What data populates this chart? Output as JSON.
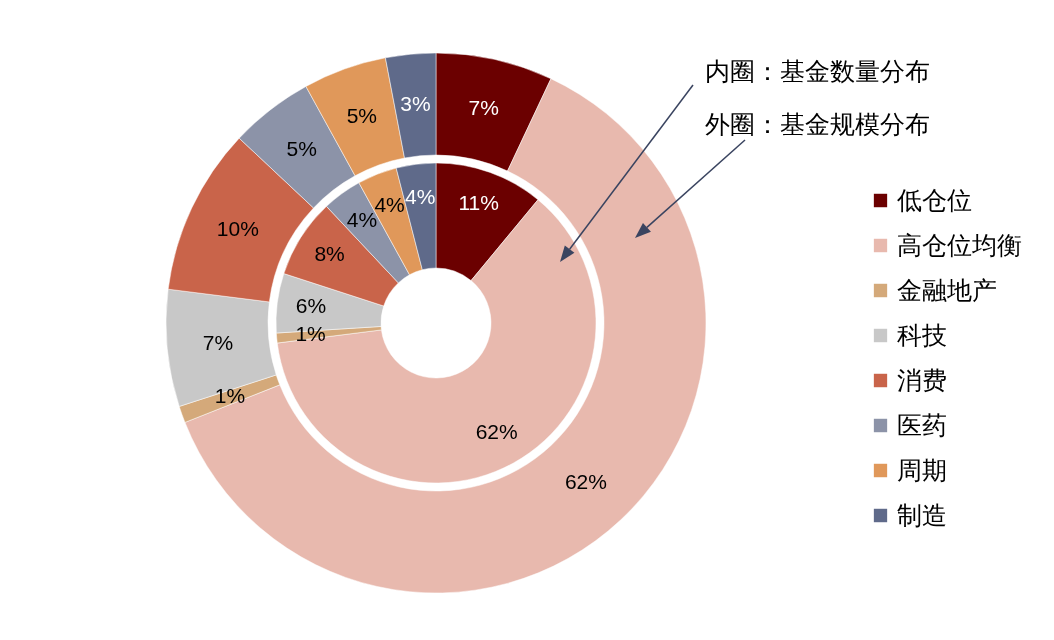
{
  "chart_data": {
    "type": "donut",
    "categories": [
      "低仓位",
      "高仓位均衡",
      "金融地产",
      "科技",
      "消费",
      "医药",
      "周期",
      "制造"
    ],
    "colors": [
      "#6b0000",
      "#e8b9ae",
      "#d4a97a",
      "#c8c8c8",
      "#c9644a",
      "#8c93a8",
      "#e0985a",
      "#5f6a8a"
    ],
    "series": [
      {
        "values": [
          7,
          62,
          1,
          7,
          10,
          5,
          5,
          3
        ],
        "value_labels": [
          "7%",
          "62%",
          "1%",
          "7%",
          "10%",
          "5%",
          "5%",
          "3%"
        ]
      },
      {
        "values": [
          11,
          62,
          1,
          6,
          8,
          4,
          4,
          4
        ],
        "value_labels": [
          "11%",
          "62%",
          "1%",
          "6%",
          "8%",
          "4%",
          "4%",
          "4%"
        ]
      }
    ],
    "legend": "right",
    "annotations": [
      "内圈：基金数量分布",
      "外圈：基金规模分布"
    ]
  }
}
